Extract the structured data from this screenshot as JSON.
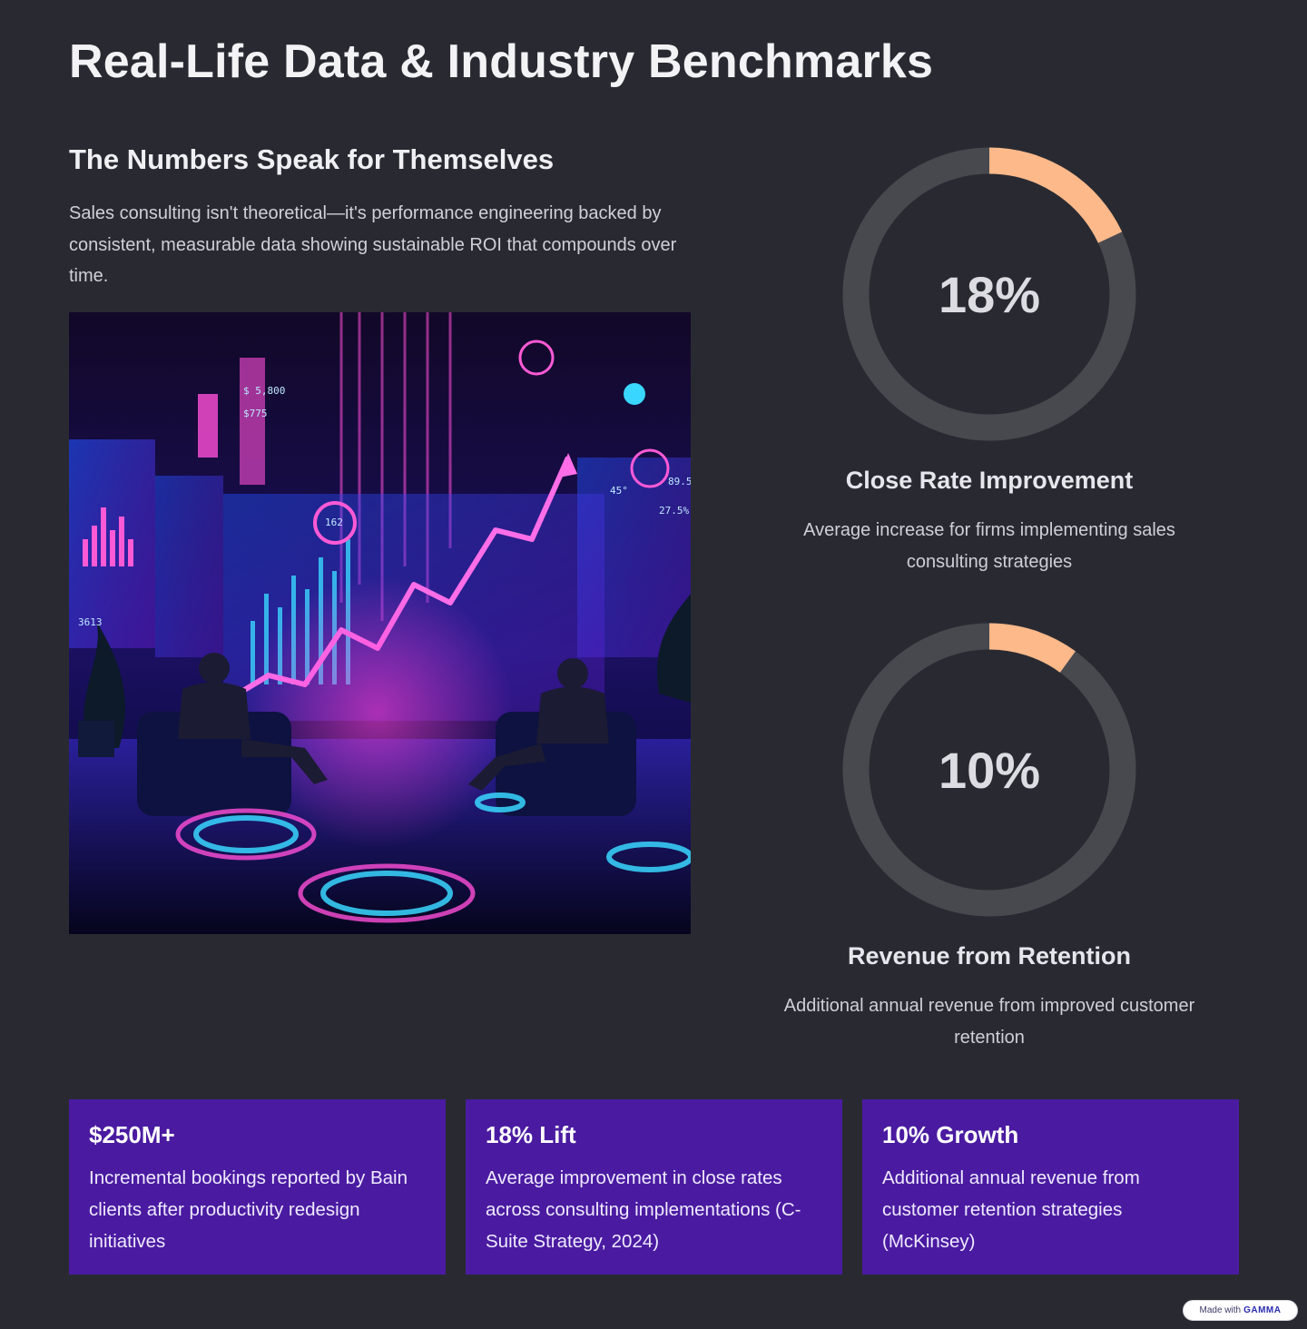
{
  "page": {
    "title": "Real-Life Data & Industry Benchmarks",
    "section_title": "The Numbers Speak for Themselves",
    "section_body": "Sales consulting isn't theoretical—it's performance engineering backed by consistent, measurable data showing sustainable ROI that compounds over time."
  },
  "hero_image": {
    "labels": [
      "$ 5,800",
      "$775",
      "162",
      "45°",
      "27.5%",
      "89.5",
      "3613"
    ]
  },
  "stats": [
    {
      "value": "18%",
      "fraction": 0.18,
      "label": "Close Rate Improvement",
      "description": "Average increase for firms implementing sales consulting strategies"
    },
    {
      "value": "10%",
      "fraction": 0.1,
      "label": "Revenue from Retention",
      "description": "Additional annual revenue from improved customer retention"
    }
  ],
  "cards": [
    {
      "title": "$250M+",
      "body": "Incremental bookings reported by Bain clients after productivity redesign initiatives"
    },
    {
      "title": "18% Lift",
      "body": "Average improvement in close rates across consulting implementations (C-Suite Strategy, 2024)"
    },
    {
      "title": "10% Growth",
      "body": "Additional annual revenue from customer retention strategies (McKinsey)"
    }
  ],
  "badge": {
    "prefix": "Made with",
    "brand": "GAMMA"
  },
  "colors": {
    "background": "#292a31",
    "ring_track": "#48494f",
    "ring_accent": "#fdb98a",
    "card": "#4a1ba1"
  }
}
